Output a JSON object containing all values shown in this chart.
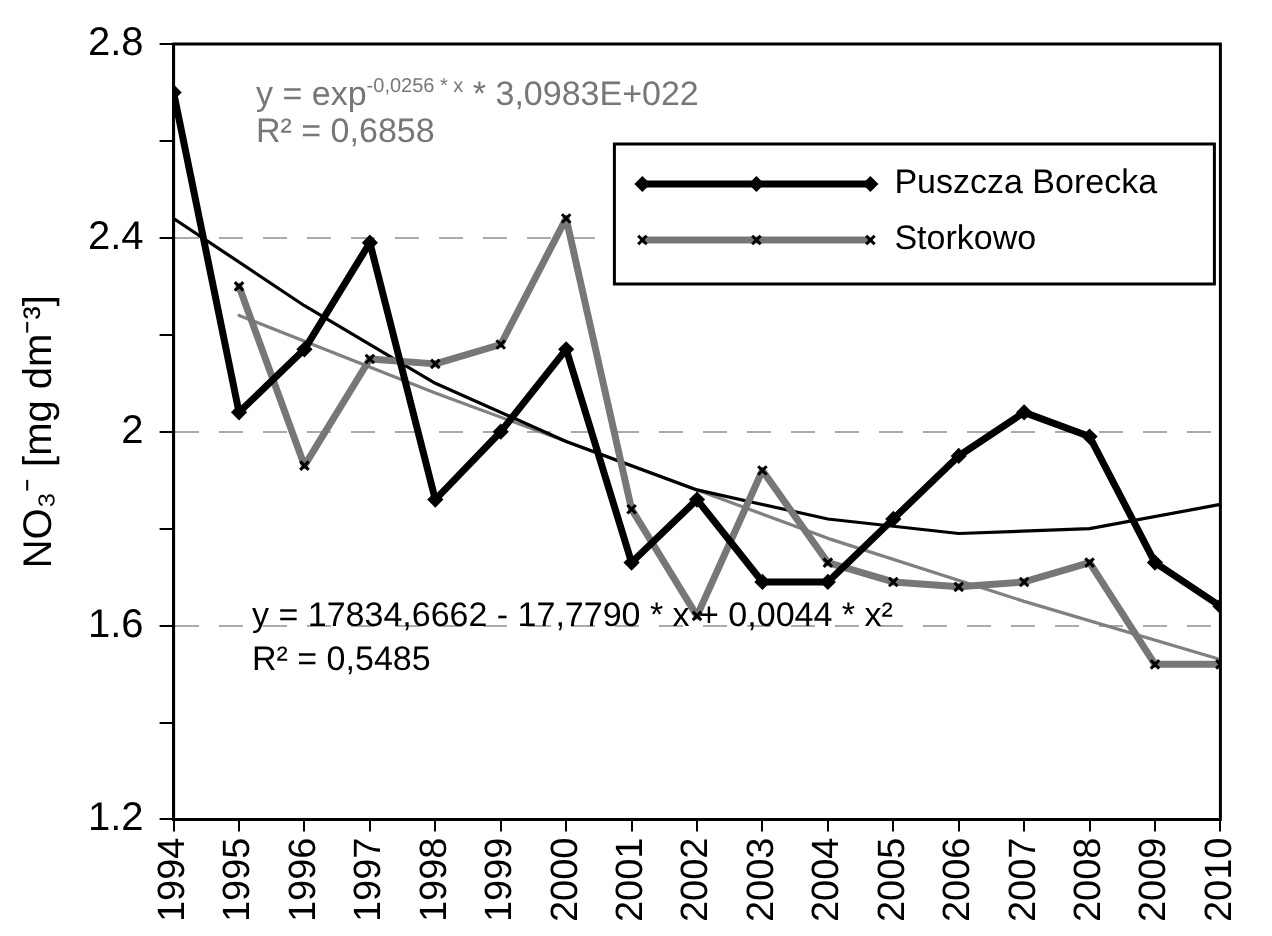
{
  "chart_data": {
    "type": "line",
    "ylabel": "NO₃⁻ [mg dm⁻³]",
    "x": [
      1994,
      1995,
      1996,
      1997,
      1998,
      1999,
      2000,
      2001,
      2002,
      2003,
      2004,
      2005,
      2006,
      2007,
      2008,
      2009,
      2010
    ],
    "series": [
      {
        "name": "Puszcza Borecka",
        "color": "#000000",
        "marker": "diamond",
        "values": [
          2.7,
          2.04,
          2.17,
          2.39,
          1.86,
          2.0,
          2.17,
          1.73,
          1.86,
          1.69,
          1.69,
          1.82,
          1.95,
          2.04,
          1.99,
          1.73,
          1.64
        ]
      },
      {
        "name": "Storkowo",
        "color": "#777777",
        "marker": "cross",
        "values": [
          null,
          2.3,
          1.93,
          2.15,
          2.14,
          2.18,
          2.44,
          1.84,
          1.62,
          1.92,
          1.73,
          1.69,
          1.68,
          1.69,
          1.73,
          1.52,
          1.52
        ]
      },
      {
        "type": "line",
        "color": "#000000",
        "marker": "none",
        "x": [
          1994,
          1996,
          1998,
          2000,
          2002,
          2004,
          2006,
          2008,
          2010
        ],
        "values": [
          2.44,
          2.26,
          2.1,
          1.98,
          1.88,
          1.82,
          1.79,
          1.8,
          1.85
        ]
      },
      {
        "type": "line",
        "color": "#808080",
        "marker": "none",
        "x": [
          1995,
          1998,
          2001,
          2004,
          2007,
          2010
        ],
        "values": [
          2.24,
          2.08,
          1.93,
          1.78,
          1.65,
          1.53
        ]
      }
    ],
    "xlim": [
      1994,
      2010
    ],
    "xticks": [
      {
        "value": 1994,
        "label": "1994"
      },
      {
        "value": 1995,
        "label": "1995"
      },
      {
        "value": 1996,
        "label": "1996"
      },
      {
        "value": 1997,
        "label": "1997"
      },
      {
        "value": 1998,
        "label": "1998"
      },
      {
        "value": 1999,
        "label": "1999"
      },
      {
        "value": 2000,
        "label": "2000"
      },
      {
        "value": 2001,
        "label": "2001"
      },
      {
        "value": 2002,
        "label": "2002"
      },
      {
        "value": 2003,
        "label": "2003"
      },
      {
        "value": 2004,
        "label": "2004"
      },
      {
        "value": 2005,
        "label": "2005"
      },
      {
        "value": 2006,
        "label": "2006"
      },
      {
        "value": 2007,
        "label": "2007"
      },
      {
        "value": 2008,
        "label": "2008"
      },
      {
        "value": 2009,
        "label": "2009"
      },
      {
        "value": 2010,
        "label": "2010"
      }
    ],
    "ylim": [
      1.2,
      2.8
    ],
    "yticks": [
      1.2,
      {
        "value": 1.4,
        "label": null
      },
      1.6,
      {
        "value": 1.8,
        "label": null
      },
      2,
      {
        "value": 2.2,
        "label": null
      },
      2.4,
      {
        "value": 2.6,
        "label": null
      },
      2.8
    ],
    "grid": "y",
    "legend": "top right",
    "annotations": [
      "y = exp$^{-0,0256 * x}$ * 3,0983E+022",
      "R² = 0,6858",
      "y = 17834,6662 - 17,7790 * x + 0,0044 * x²",
      "R² = 0,5485"
    ]
  }
}
